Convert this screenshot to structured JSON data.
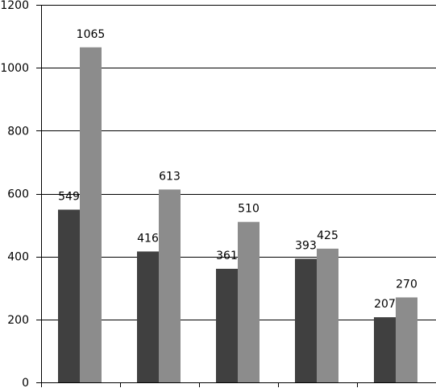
{
  "chart_data": {
    "type": "bar",
    "categories": [
      "",
      "",
      "",
      "",
      ""
    ],
    "series": [
      {
        "values": [
          549,
          416,
          361,
          393,
          207
        ],
        "color": "#404040"
      },
      {
        "values": [
          1065,
          613,
          510,
          425,
          270
        ],
        "color": "#8c8c8c"
      }
    ],
    "ylim": [
      0,
      1200
    ],
    "yticks": [
      0,
      200,
      400,
      600,
      800,
      1000,
      1200
    ],
    "ytick_labels": [
      "0",
      "200",
      "400",
      "600",
      "800",
      "1000",
      "1200"
    ],
    "grid": true,
    "legend": "none"
  }
}
